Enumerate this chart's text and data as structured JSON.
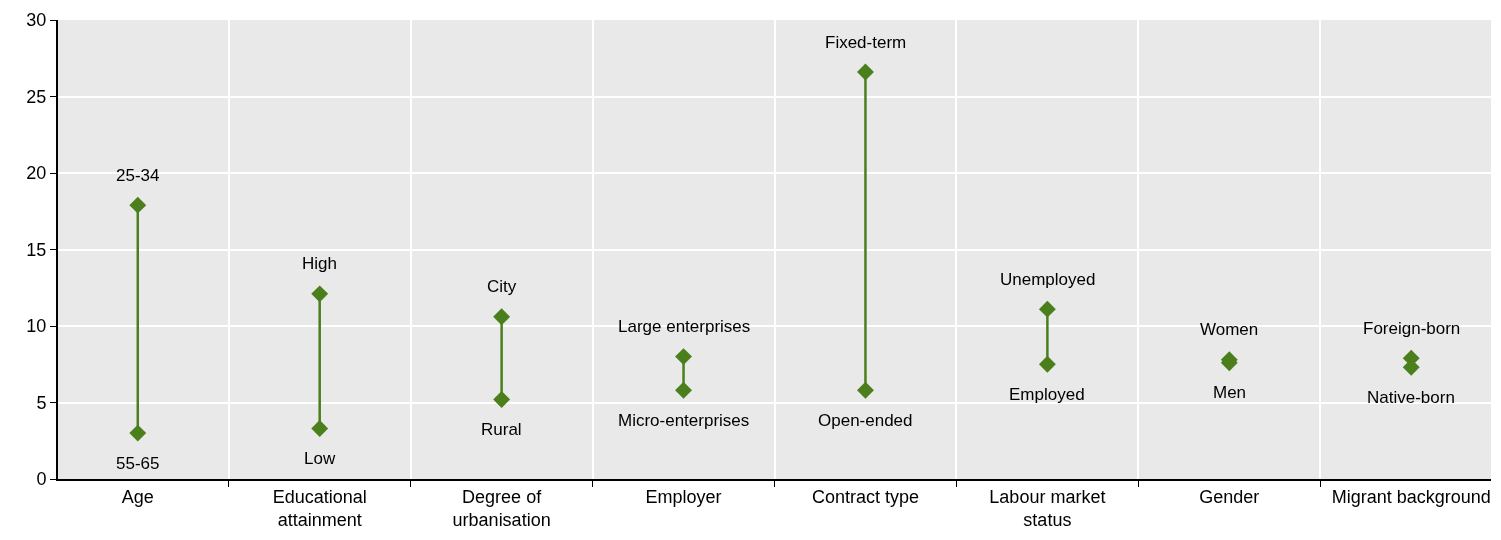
{
  "chart_data": {
    "type": "scatter",
    "categories": [
      "Age",
      "Educational attainment",
      "Degree of urbanisation",
      "Employer",
      "Contract type",
      "Labour market status",
      "Gender",
      "Migrant background"
    ],
    "series": [
      {
        "color": "#4a7f1c",
        "values": [
          17.9,
          12.1,
          10.6,
          8.0,
          26.6,
          11.1,
          7.8,
          7.9
        ]
      },
      {
        "color": "#4a7f1c",
        "values": [
          3.0,
          3.3,
          5.2,
          5.8,
          5.8,
          7.5,
          7.6,
          7.3
        ]
      }
    ],
    "annotations": [
      {
        "text": "25-34",
        "x": "Age",
        "y": 17.9
      },
      {
        "text": "55-65",
        "x": "Age",
        "y": 3.0
      },
      {
        "text": "High",
        "x": "Educational attainment",
        "y": 12.1
      },
      {
        "text": "Low",
        "x": "Educational attainment",
        "y": 3.3
      },
      {
        "text": "City",
        "x": "Degree of urbanisation",
        "y": 10.6
      },
      {
        "text": "Rural",
        "x": "Degree of urbanisation",
        "y": 5.2
      },
      {
        "text": "Large enterprises",
        "x": "Employer",
        "y": 8.0
      },
      {
        "text": "Micro-enterprises",
        "x": "Employer",
        "y": 5.8
      },
      {
        "text": "Fixed-term",
        "x": "Contract type",
        "y": 26.6
      },
      {
        "text": "Open-ended",
        "x": "Contract type",
        "y": 5.8
      },
      {
        "text": "Unemployed",
        "x": "Labour market status",
        "y": 11.1
      },
      {
        "text": "Employed",
        "x": "Labour market status",
        "y": 7.5
      },
      {
        "text": "Women",
        "x": "Gender",
        "y": 7.8
      },
      {
        "text": "Men",
        "x": "Gender",
        "y": 7.6
      },
      {
        "text": "Foreign-born",
        "x": "Migrant background",
        "y": 7.9
      },
      {
        "text": "Native-born",
        "x": "Migrant background",
        "y": 7.3
      }
    ],
    "ylim": [
      0,
      30
    ],
    "yticks": [
      0,
      5,
      10,
      15,
      20,
      25,
      30
    ],
    "grid": true,
    "marker": "diamond"
  }
}
